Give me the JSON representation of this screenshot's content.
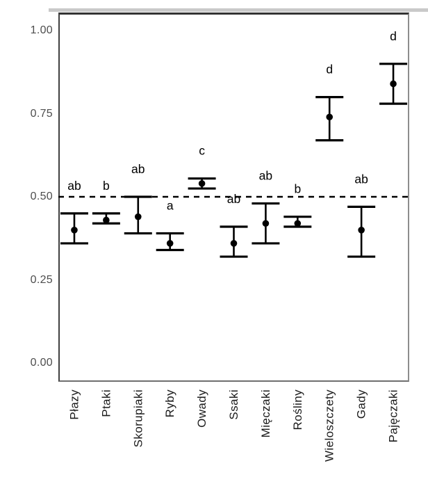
{
  "figure": {
    "background": "#ffffff",
    "panel_border_color": "#555555",
    "axis_text_color": "#4d4d4d",
    "category_text_color": "#1a1a1a",
    "data_color": "#000000"
  },
  "chart_data": {
    "type": "scatter",
    "subtype": "point-estimates-with-error-bars",
    "title": "",
    "xlabel": "",
    "ylabel": "",
    "ylim": [
      0,
      1
    ],
    "grid": false,
    "legend": "none",
    "yticks": [
      "1.00",
      "0.75",
      "0.50",
      "0.25",
      "0.00"
    ],
    "ytick_values": [
      1.0,
      0.75,
      0.5,
      0.25,
      0.0
    ],
    "reference_line": {
      "y": 0.5,
      "style": "dashed",
      "color": "#000000"
    },
    "categories": [
      "Płazy",
      "Ptaki",
      "Skorupiaki",
      "Ryby",
      "Owady",
      "Ssaki",
      "Mięczaki",
      "Rośliny",
      "Wieloszczety",
      "Gady",
      "Pajęczaki"
    ],
    "series": [
      {
        "category": "Płazy",
        "mean": 0.4,
        "lower": 0.36,
        "upper": 0.45,
        "letter": "ab"
      },
      {
        "category": "Ptaki",
        "mean": 0.43,
        "lower": 0.42,
        "upper": 0.45,
        "letter": "b"
      },
      {
        "category": "Skorupiaki",
        "mean": 0.44,
        "lower": 0.39,
        "upper": 0.5,
        "letter": "ab"
      },
      {
        "category": "Ryby",
        "mean": 0.36,
        "lower": 0.34,
        "upper": 0.39,
        "letter": "a"
      },
      {
        "category": "Owady",
        "mean": 0.54,
        "lower": 0.525,
        "upper": 0.555,
        "letter": "c"
      },
      {
        "category": "Ssaki",
        "mean": 0.36,
        "lower": 0.32,
        "upper": 0.41,
        "letter": "ab"
      },
      {
        "category": "Mięczaki",
        "mean": 0.42,
        "lower": 0.36,
        "upper": 0.48,
        "letter": "ab"
      },
      {
        "category": "Rośliny",
        "mean": 0.42,
        "lower": 0.41,
        "upper": 0.44,
        "letter": "b"
      },
      {
        "category": "Wieloszczety",
        "mean": 0.74,
        "lower": 0.67,
        "upper": 0.8,
        "letter": "d"
      },
      {
        "category": "Gady",
        "mean": 0.4,
        "lower": 0.32,
        "upper": 0.47,
        "letter": "ab"
      },
      {
        "category": "Pajęczaki",
        "mean": 0.84,
        "lower": 0.78,
        "upper": 0.9,
        "letter": "d"
      }
    ]
  }
}
